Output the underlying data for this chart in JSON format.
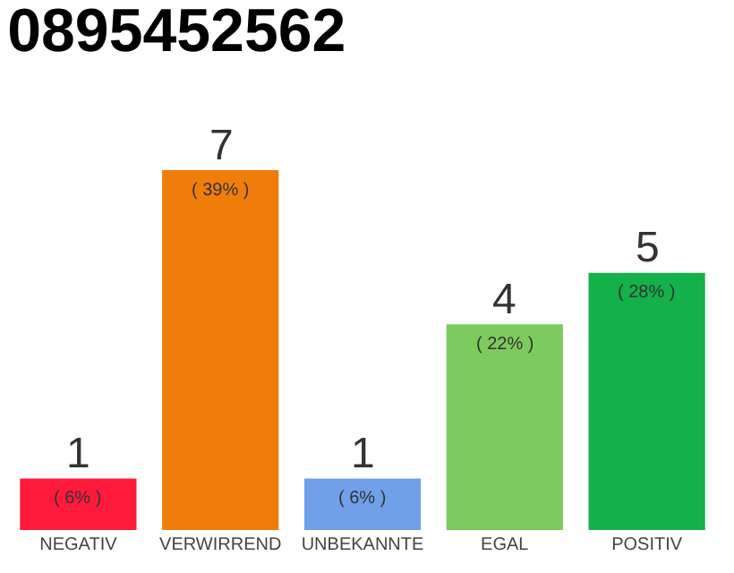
{
  "chart_data": {
    "type": "bar",
    "title": "0895452562",
    "categories": [
      "NEGATIV",
      "VERWIRREND",
      "UNBEKANNTE",
      "EGAL",
      "POSITIV"
    ],
    "values": [
      1,
      7,
      1,
      4,
      5
    ],
    "colors": [
      "#ff1a3c",
      "#f07d0a",
      "#6fa0e8",
      "#7dcb5e",
      "#14b04a"
    ],
    "value_labels": [
      "1\n( 6% )",
      "7\n( 39% )",
      "1\n( 6% )",
      "4\n( 22% )",
      "5\n( 28% )"
    ],
    "legend": false
  }
}
